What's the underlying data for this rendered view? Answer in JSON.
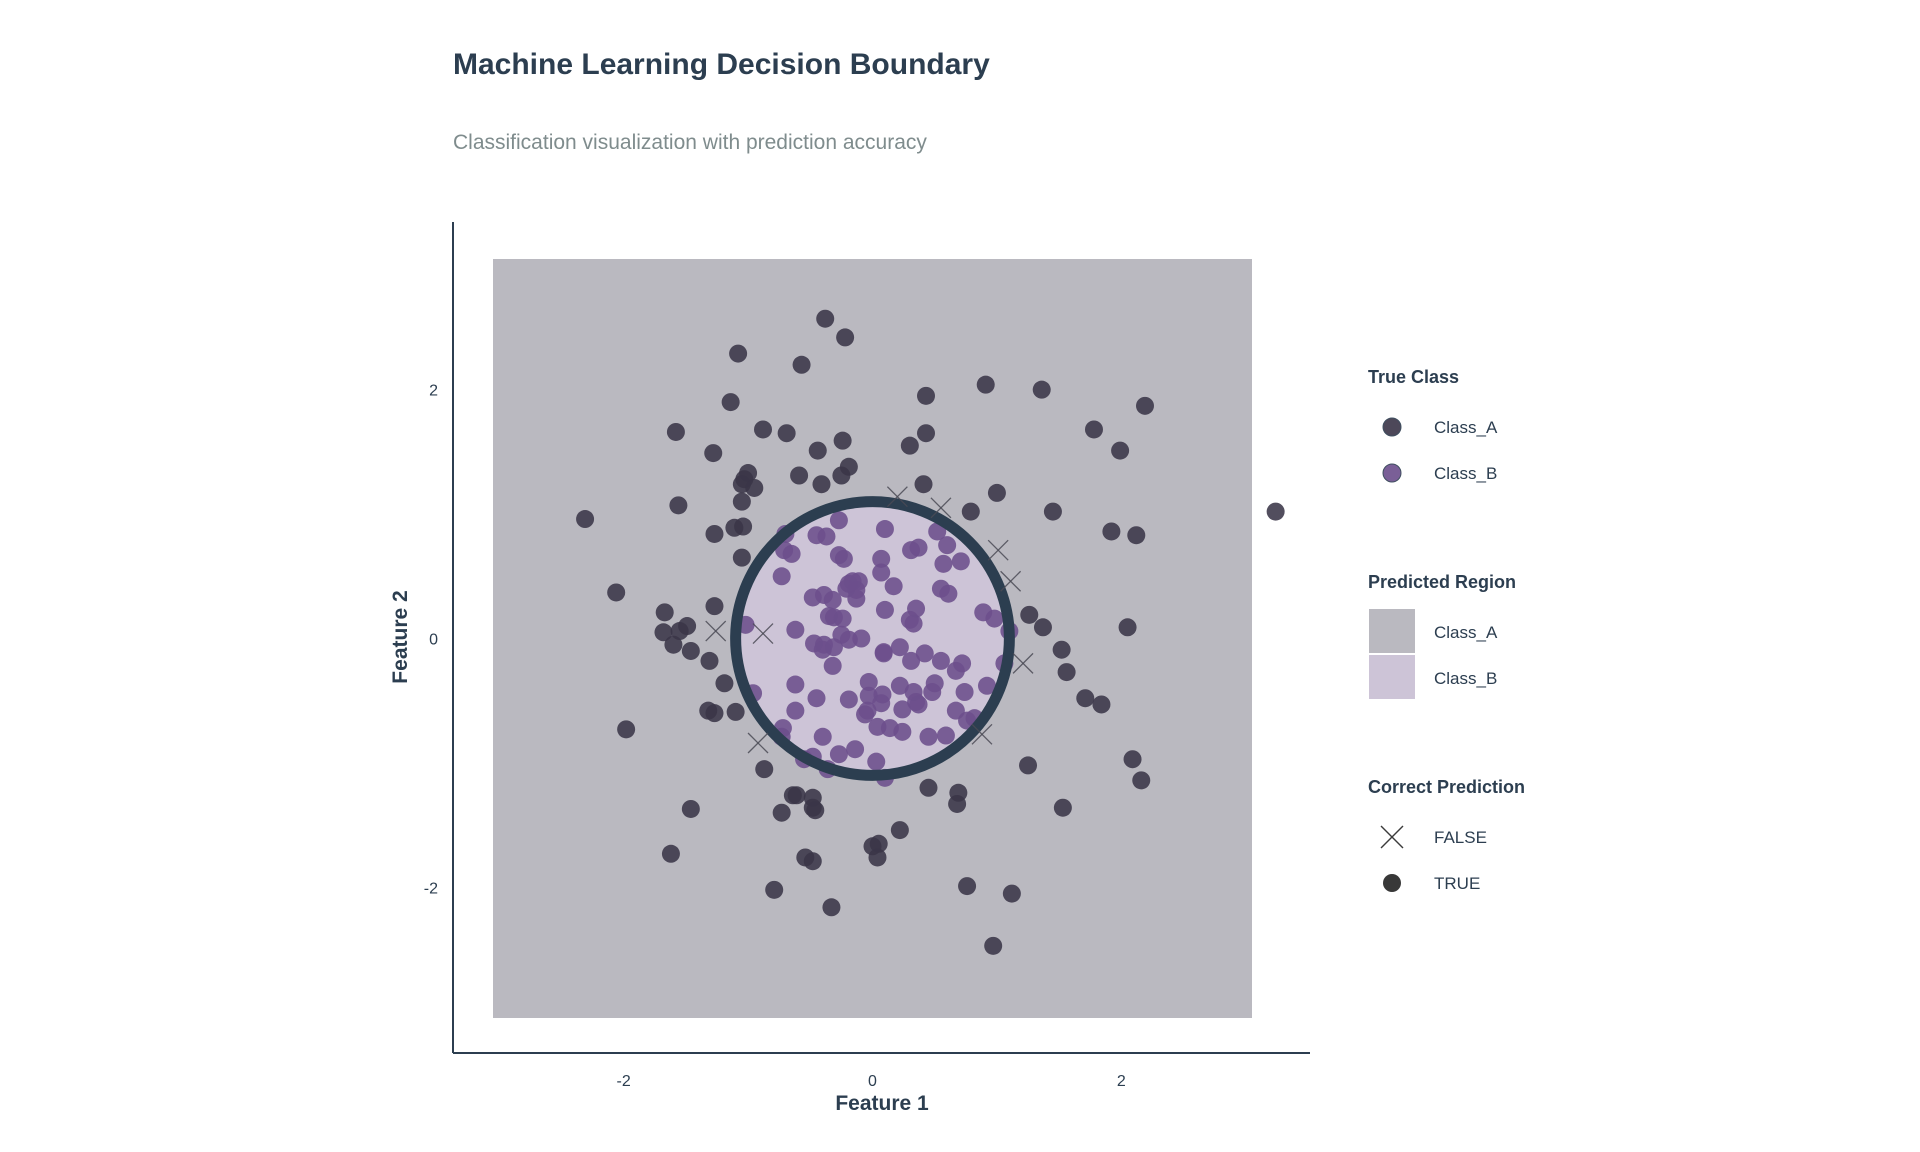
{
  "chart_data": {
    "type": "scatter",
    "title": "Machine Learning Decision Boundary",
    "subtitle": "Classification visualization with prediction accuracy",
    "xlabel": "Feature 1",
    "ylabel": "Feature 2",
    "xlim": [
      -3.05,
      3.05
    ],
    "ylim": [
      -3.05,
      3.05
    ],
    "x_ticks": [
      "-2",
      "0",
      "2"
    ],
    "y_ticks": [
      "2",
      "0",
      "-2"
    ],
    "grid": false,
    "region_colors": {
      "Class_A": "#bab9c0",
      "Class_B": "#cdc4d7"
    },
    "point_colors": {
      "Class_A": "#3a3548",
      "Class_B": "#6c4e8c"
    },
    "boundary": {
      "shape": "circle",
      "center": [
        0.0,
        0.0
      ],
      "radius": 1.1,
      "color": "#2c3e50"
    },
    "series": [
      {
        "name": "Class_A",
        "points": [
          [
            -0.38,
            2.57
          ],
          [
            -0.22,
            2.42
          ],
          [
            -1.08,
            2.29
          ],
          [
            -0.57,
            2.2
          ],
          [
            -1.14,
            1.9
          ],
          [
            -0.88,
            1.68
          ],
          [
            -0.69,
            1.65
          ],
          [
            -0.24,
            1.59
          ],
          [
            -0.44,
            1.51
          ],
          [
            -1.58,
            1.66
          ],
          [
            -1.28,
            1.49
          ],
          [
            -0.19,
            1.38
          ],
          [
            -0.59,
            1.31
          ],
          [
            -0.25,
            1.31
          ],
          [
            -0.41,
            1.24
          ],
          [
            -1.0,
            1.33
          ],
          [
            -1.03,
            1.28
          ],
          [
            -1.05,
            1.24
          ],
          [
            -0.95,
            1.21
          ],
          [
            -1.05,
            1.1
          ],
          [
            -1.56,
            1.07
          ],
          [
            -1.11,
            0.89
          ],
          [
            -1.04,
            0.9
          ],
          [
            -1.27,
            0.84
          ],
          [
            -1.05,
            0.65
          ],
          [
            -2.31,
            0.96
          ],
          [
            -2.06,
            0.37
          ],
          [
            -1.27,
            0.26
          ],
          [
            -1.67,
            0.21
          ],
          [
            -1.49,
            0.1
          ],
          [
            -1.55,
            0.06
          ],
          [
            -1.68,
            0.05
          ],
          [
            -1.6,
            -0.05
          ],
          [
            -1.46,
            -0.1
          ],
          [
            -1.31,
            -0.18
          ],
          [
            -1.19,
            -0.36
          ],
          [
            -1.32,
            -0.58
          ],
          [
            -1.27,
            -0.6
          ],
          [
            -1.1,
            -0.59
          ],
          [
            -1.98,
            -0.73
          ],
          [
            -0.87,
            -1.05
          ],
          [
            -0.64,
            -1.26
          ],
          [
            -0.61,
            -1.26
          ],
          [
            -0.48,
            -1.28
          ],
          [
            -0.73,
            -1.4
          ],
          [
            -0.48,
            -1.36
          ],
          [
            -0.46,
            -1.38
          ],
          [
            -1.46,
            -1.37
          ],
          [
            -1.62,
            -1.73
          ],
          [
            -0.54,
            -1.76
          ],
          [
            -0.48,
            -1.79
          ],
          [
            -0.79,
            -2.02
          ],
          [
            -0.33,
            -2.16
          ],
          [
            0.0,
            -1.67
          ],
          [
            0.05,
            -1.65
          ],
          [
            0.22,
            -1.54
          ],
          [
            0.04,
            -1.76
          ],
          [
            0.45,
            -1.2
          ],
          [
            0.69,
            -1.24
          ],
          [
            0.68,
            -1.33
          ],
          [
            0.76,
            -1.99
          ],
          [
            1.12,
            -2.05
          ],
          [
            0.97,
            -2.47
          ],
          [
            1.25,
            -1.02
          ],
          [
            1.53,
            -1.36
          ],
          [
            2.09,
            -0.97
          ],
          [
            2.16,
            -1.14
          ],
          [
            1.84,
            -0.53
          ],
          [
            1.71,
            -0.48
          ],
          [
            1.56,
            -0.27
          ],
          [
            1.52,
            -0.09
          ],
          [
            1.37,
            0.09
          ],
          [
            1.26,
            0.19
          ],
          [
            2.05,
            0.09
          ],
          [
            1.92,
            0.86
          ],
          [
            2.12,
            0.83
          ],
          [
            1.45,
            1.02
          ],
          [
            0.79,
            1.02
          ],
          [
            1.0,
            1.17
          ],
          [
            0.41,
            1.24
          ],
          [
            0.3,
            1.55
          ],
          [
            0.43,
            1.65
          ],
          [
            0.43,
            1.95
          ],
          [
            0.91,
            2.04
          ],
          [
            1.36,
            2.0
          ],
          [
            1.78,
            1.68
          ],
          [
            1.99,
            1.51
          ],
          [
            2.19,
            1.87
          ],
          [
            3.24,
            1.02
          ]
        ]
      },
      {
        "name": "Class_B",
        "points": [
          [
            -0.27,
            0.95
          ],
          [
            0.1,
            0.88
          ],
          [
            -0.37,
            0.82
          ],
          [
            -0.45,
            0.83
          ],
          [
            -0.7,
            0.84
          ],
          [
            -0.71,
            0.71
          ],
          [
            -0.65,
            0.68
          ],
          [
            -0.27,
            0.67
          ],
          [
            -0.23,
            0.64
          ],
          [
            0.07,
            0.64
          ],
          [
            0.52,
            0.86
          ],
          [
            0.37,
            0.73
          ],
          [
            0.31,
            0.71
          ],
          [
            0.6,
            0.75
          ],
          [
            0.57,
            0.6
          ],
          [
            0.71,
            0.62
          ],
          [
            0.07,
            0.53
          ],
          [
            -0.73,
            0.5
          ],
          [
            -0.39,
            0.35
          ],
          [
            -0.32,
            0.31
          ],
          [
            -0.16,
            0.46
          ],
          [
            -0.19,
            0.44
          ],
          [
            -0.11,
            0.46
          ],
          [
            -0.13,
            0.39
          ],
          [
            -0.21,
            0.4
          ],
          [
            0.17,
            0.42
          ],
          [
            -0.48,
            0.33
          ],
          [
            -0.13,
            0.32
          ],
          [
            0.55,
            0.4
          ],
          [
            0.61,
            0.36
          ],
          [
            0.35,
            0.24
          ],
          [
            0.1,
            0.23
          ],
          [
            0.3,
            0.15
          ],
          [
            0.33,
            0.12
          ],
          [
            -0.35,
            0.18
          ],
          [
            -0.31,
            0.17
          ],
          [
            -0.24,
            0.16
          ],
          [
            -0.62,
            0.07
          ],
          [
            -0.25,
            0.03
          ],
          [
            -0.19,
            -0.01
          ],
          [
            -0.09,
            0.0
          ],
          [
            -0.47,
            -0.04
          ],
          [
            -0.39,
            -0.05
          ],
          [
            -0.4,
            -0.09
          ],
          [
            -0.31,
            -0.07
          ],
          [
            -1.02,
            0.11
          ],
          [
            0.89,
            0.21
          ],
          [
            0.09,
            -0.11
          ],
          [
            0.09,
            -0.12
          ],
          [
            0.22,
            -0.07
          ],
          [
            0.42,
            -0.12
          ],
          [
            0.55,
            -0.18
          ],
          [
            0.67,
            -0.26
          ],
          [
            0.72,
            -0.2
          ],
          [
            0.31,
            -0.18
          ],
          [
            1.06,
            -0.2
          ],
          [
            -0.32,
            -0.22
          ],
          [
            -0.03,
            -0.35
          ],
          [
            -0.96,
            -0.44
          ],
          [
            -0.62,
            -0.37
          ],
          [
            -0.45,
            -0.48
          ],
          [
            -0.19,
            -0.49
          ],
          [
            -0.03,
            -0.46
          ],
          [
            0.08,
            -0.45
          ],
          [
            0.22,
            -0.38
          ],
          [
            0.33,
            -0.43
          ],
          [
            0.35,
            -0.51
          ],
          [
            0.48,
            -0.43
          ],
          [
            0.5,
            -0.36
          ],
          [
            0.74,
            -0.43
          ],
          [
            0.92,
            -0.38
          ],
          [
            -0.62,
            -0.58
          ],
          [
            -0.04,
            -0.58
          ],
          [
            -0.06,
            -0.61
          ],
          [
            0.07,
            -0.52
          ],
          [
            0.24,
            -0.57
          ],
          [
            0.37,
            -0.53
          ],
          [
            0.67,
            -0.58
          ],
          [
            0.76,
            -0.66
          ],
          [
            0.82,
            -0.64
          ],
          [
            -0.72,
            -0.72
          ],
          [
            -0.73,
            -0.79
          ],
          [
            -0.4,
            -0.79
          ],
          [
            0.04,
            -0.71
          ],
          [
            0.14,
            -0.72
          ],
          [
            0.24,
            -0.75
          ],
          [
            0.45,
            -0.79
          ],
          [
            0.59,
            -0.78
          ],
          [
            -0.14,
            -0.89
          ],
          [
            -0.27,
            -0.93
          ],
          [
            -0.48,
            -0.95
          ],
          [
            -0.55,
            -0.97
          ],
          [
            -0.36,
            -1.05
          ],
          [
            0.03,
            -0.99
          ],
          [
            0.1,
            -1.12
          ],
          [
            0.98,
            0.16
          ],
          [
            1.1,
            0.06
          ]
        ]
      }
    ],
    "misclassified": [
      [
        0.2,
        1.14
      ],
      [
        0.55,
        1.05
      ],
      [
        1.01,
        0.71
      ],
      [
        1.11,
        0.46
      ],
      [
        -1.26,
        0.06
      ],
      [
        1.21,
        -0.2
      ],
      [
        0.88,
        -0.77
      ],
      [
        -0.92,
        -0.84
      ],
      [
        -0.88,
        0.04
      ]
    ],
    "legend": {
      "position": "right",
      "groups": [
        {
          "title": "True Class",
          "entries": [
            {
              "label": "Class_A"
            },
            {
              "label": "Class_B"
            }
          ]
        },
        {
          "title": "Predicted Region",
          "entries": [
            {
              "label": "Class_A"
            },
            {
              "label": "Class_B"
            }
          ]
        },
        {
          "title": "Correct Prediction",
          "entries": [
            {
              "label": "FALSE"
            },
            {
              "label": "TRUE"
            }
          ]
        }
      ]
    }
  }
}
